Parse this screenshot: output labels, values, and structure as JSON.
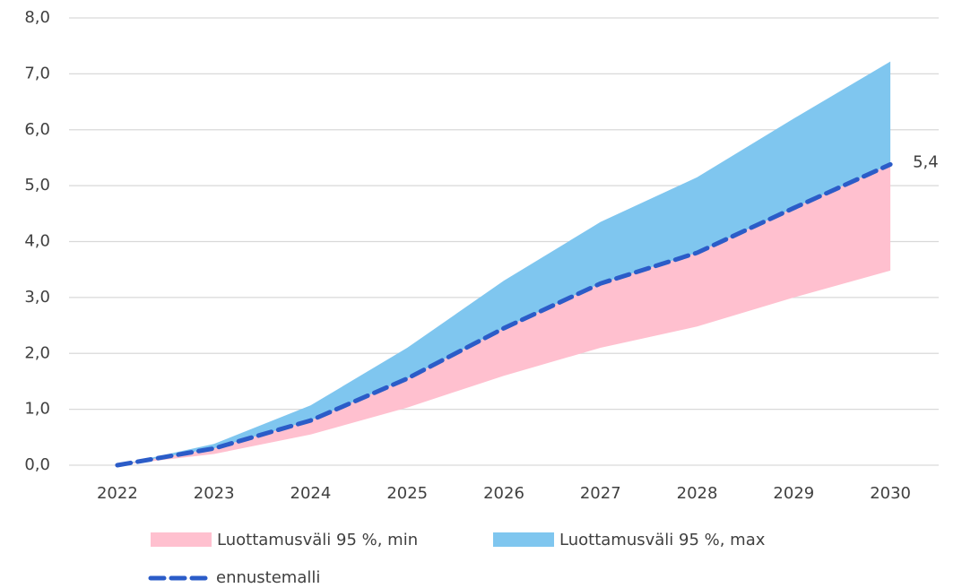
{
  "chart_data": {
    "type": "area",
    "categories": [
      "2022",
      "2023",
      "2024",
      "2025",
      "2026",
      "2027",
      "2028",
      "2029",
      "2030"
    ],
    "series": [
      {
        "name": "Luottamusväli 95 %, min",
        "color": "#ffc0cf",
        "values": [
          0,
          0.2,
          0.55,
          1.03,
          1.6,
          2.1,
          2.48,
          3.0,
          3.48
        ]
      },
      {
        "name": "Luottamusväli 95 %, max",
        "color": "#7fc6ef",
        "values": [
          0,
          0.38,
          1.07,
          2.1,
          3.3,
          4.35,
          5.15,
          6.2,
          7.22
        ]
      },
      {
        "name": "ennustemalli",
        "color": "#2b5cc8",
        "values": [
          0,
          0.3,
          0.8,
          1.55,
          2.45,
          3.25,
          3.8,
          4.6,
          5.38
        ],
        "value_labels": [
          null,
          null,
          null,
          null,
          null,
          null,
          null,
          null,
          "5,4"
        ]
      }
    ],
    "ylim": [
      0,
      8
    ],
    "yticks": [
      {
        "value": 0,
        "label": "0,0"
      },
      {
        "value": 1,
        "label": "1,0"
      },
      {
        "value": 2,
        "label": "2,0"
      },
      {
        "value": 3,
        "label": "3,0"
      },
      {
        "value": 4,
        "label": "4,0"
      },
      {
        "value": 5,
        "label": "5,0"
      },
      {
        "value": 6,
        "label": "6,0"
      },
      {
        "value": 7,
        "label": "7,0"
      },
      {
        "value": 8,
        "label": "8,0"
      }
    ],
    "grid": true
  }
}
